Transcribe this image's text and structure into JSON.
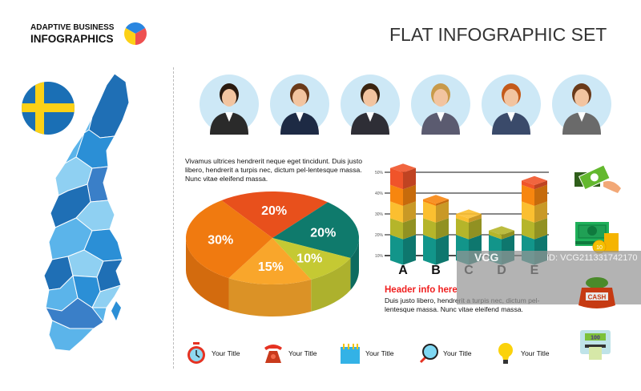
{
  "header": {
    "logo_line1": "ADAPTIVE BUSINESS",
    "logo_line2": "INFOGRAPHICS",
    "title": "FLAT INFOGRAPHIC SET"
  },
  "colors": {
    "map_blues": [
      "#1f6fb5",
      "#2b8fd6",
      "#5bb4ea",
      "#8fd0f2",
      "#3a7fc8"
    ],
    "flag_blue": "#1a6fb5",
    "flag_yellow": "#fcd116",
    "avatar_bg": "#cde8f6",
    "header_red": "#f01e1e"
  },
  "text_block_1": "Vivamus ultrices hendrerit neque eget tincidunt. Duis justo libero, hendrerit a turpis nec, dictum pel-lentesque massa. Nunc vitae eleifend massa.",
  "text_block_2": {
    "header": "Header info here",
    "body": "Duis justo libero, hendrerit a turpis nec, dictum pel-lentesque massa. Nunc vitae eleifend massa."
  },
  "chart_data": [
    {
      "type": "pie",
      "style": "3d",
      "slices": [
        {
          "label": "20%",
          "value": 20,
          "color": "#e8501c"
        },
        {
          "label": "20%",
          "value": 20,
          "color": "#0f7a6c"
        },
        {
          "label": "10%",
          "value": 10,
          "color": "#c5c933"
        },
        {
          "label": "15%",
          "value": 15,
          "color": "#f9a62b"
        },
        {
          "label": "30%",
          "value": 30,
          "color": "#f07a10"
        }
      ]
    },
    {
      "type": "bar",
      "style": "3d stacked cubes",
      "categories": [
        "A",
        "B",
        "C",
        "D",
        "E"
      ],
      "values": [
        52,
        37,
        30,
        22,
        46
      ],
      "yticks": [
        "10%",
        "20%",
        "30%",
        "40%",
        "50%"
      ],
      "ylim": [
        10,
        50
      ],
      "grid": true,
      "segment_colors": [
        "#12958a",
        "#b5b52a",
        "#fbbf30",
        "#f7860f",
        "#f0542a"
      ]
    }
  ],
  "bottom_icons": [
    {
      "icon": "alarm-clock",
      "label": "Your Title"
    },
    {
      "icon": "telephone",
      "label": "Your Title"
    },
    {
      "icon": "notepad",
      "label": "Your Title"
    },
    {
      "icon": "magnifier",
      "label": "Your Title"
    },
    {
      "icon": "light-bulb",
      "label": "Your Title"
    }
  ],
  "side_icons": [
    "cash-in-hand",
    "banknotes-and-coins",
    "cash-bag",
    "atm-cash"
  ],
  "cash_bag_label": "CASH",
  "atm_label": "100",
  "coin_label": "10",
  "avatars": [
    "businesswoman-1",
    "businesswoman-2",
    "businessman",
    "businesswoman-glasses",
    "businesswoman-notebook",
    "businesswoman-tablet"
  ],
  "watermark": {
    "logo": "VCG",
    "id": "ID: VCG211331742170"
  }
}
